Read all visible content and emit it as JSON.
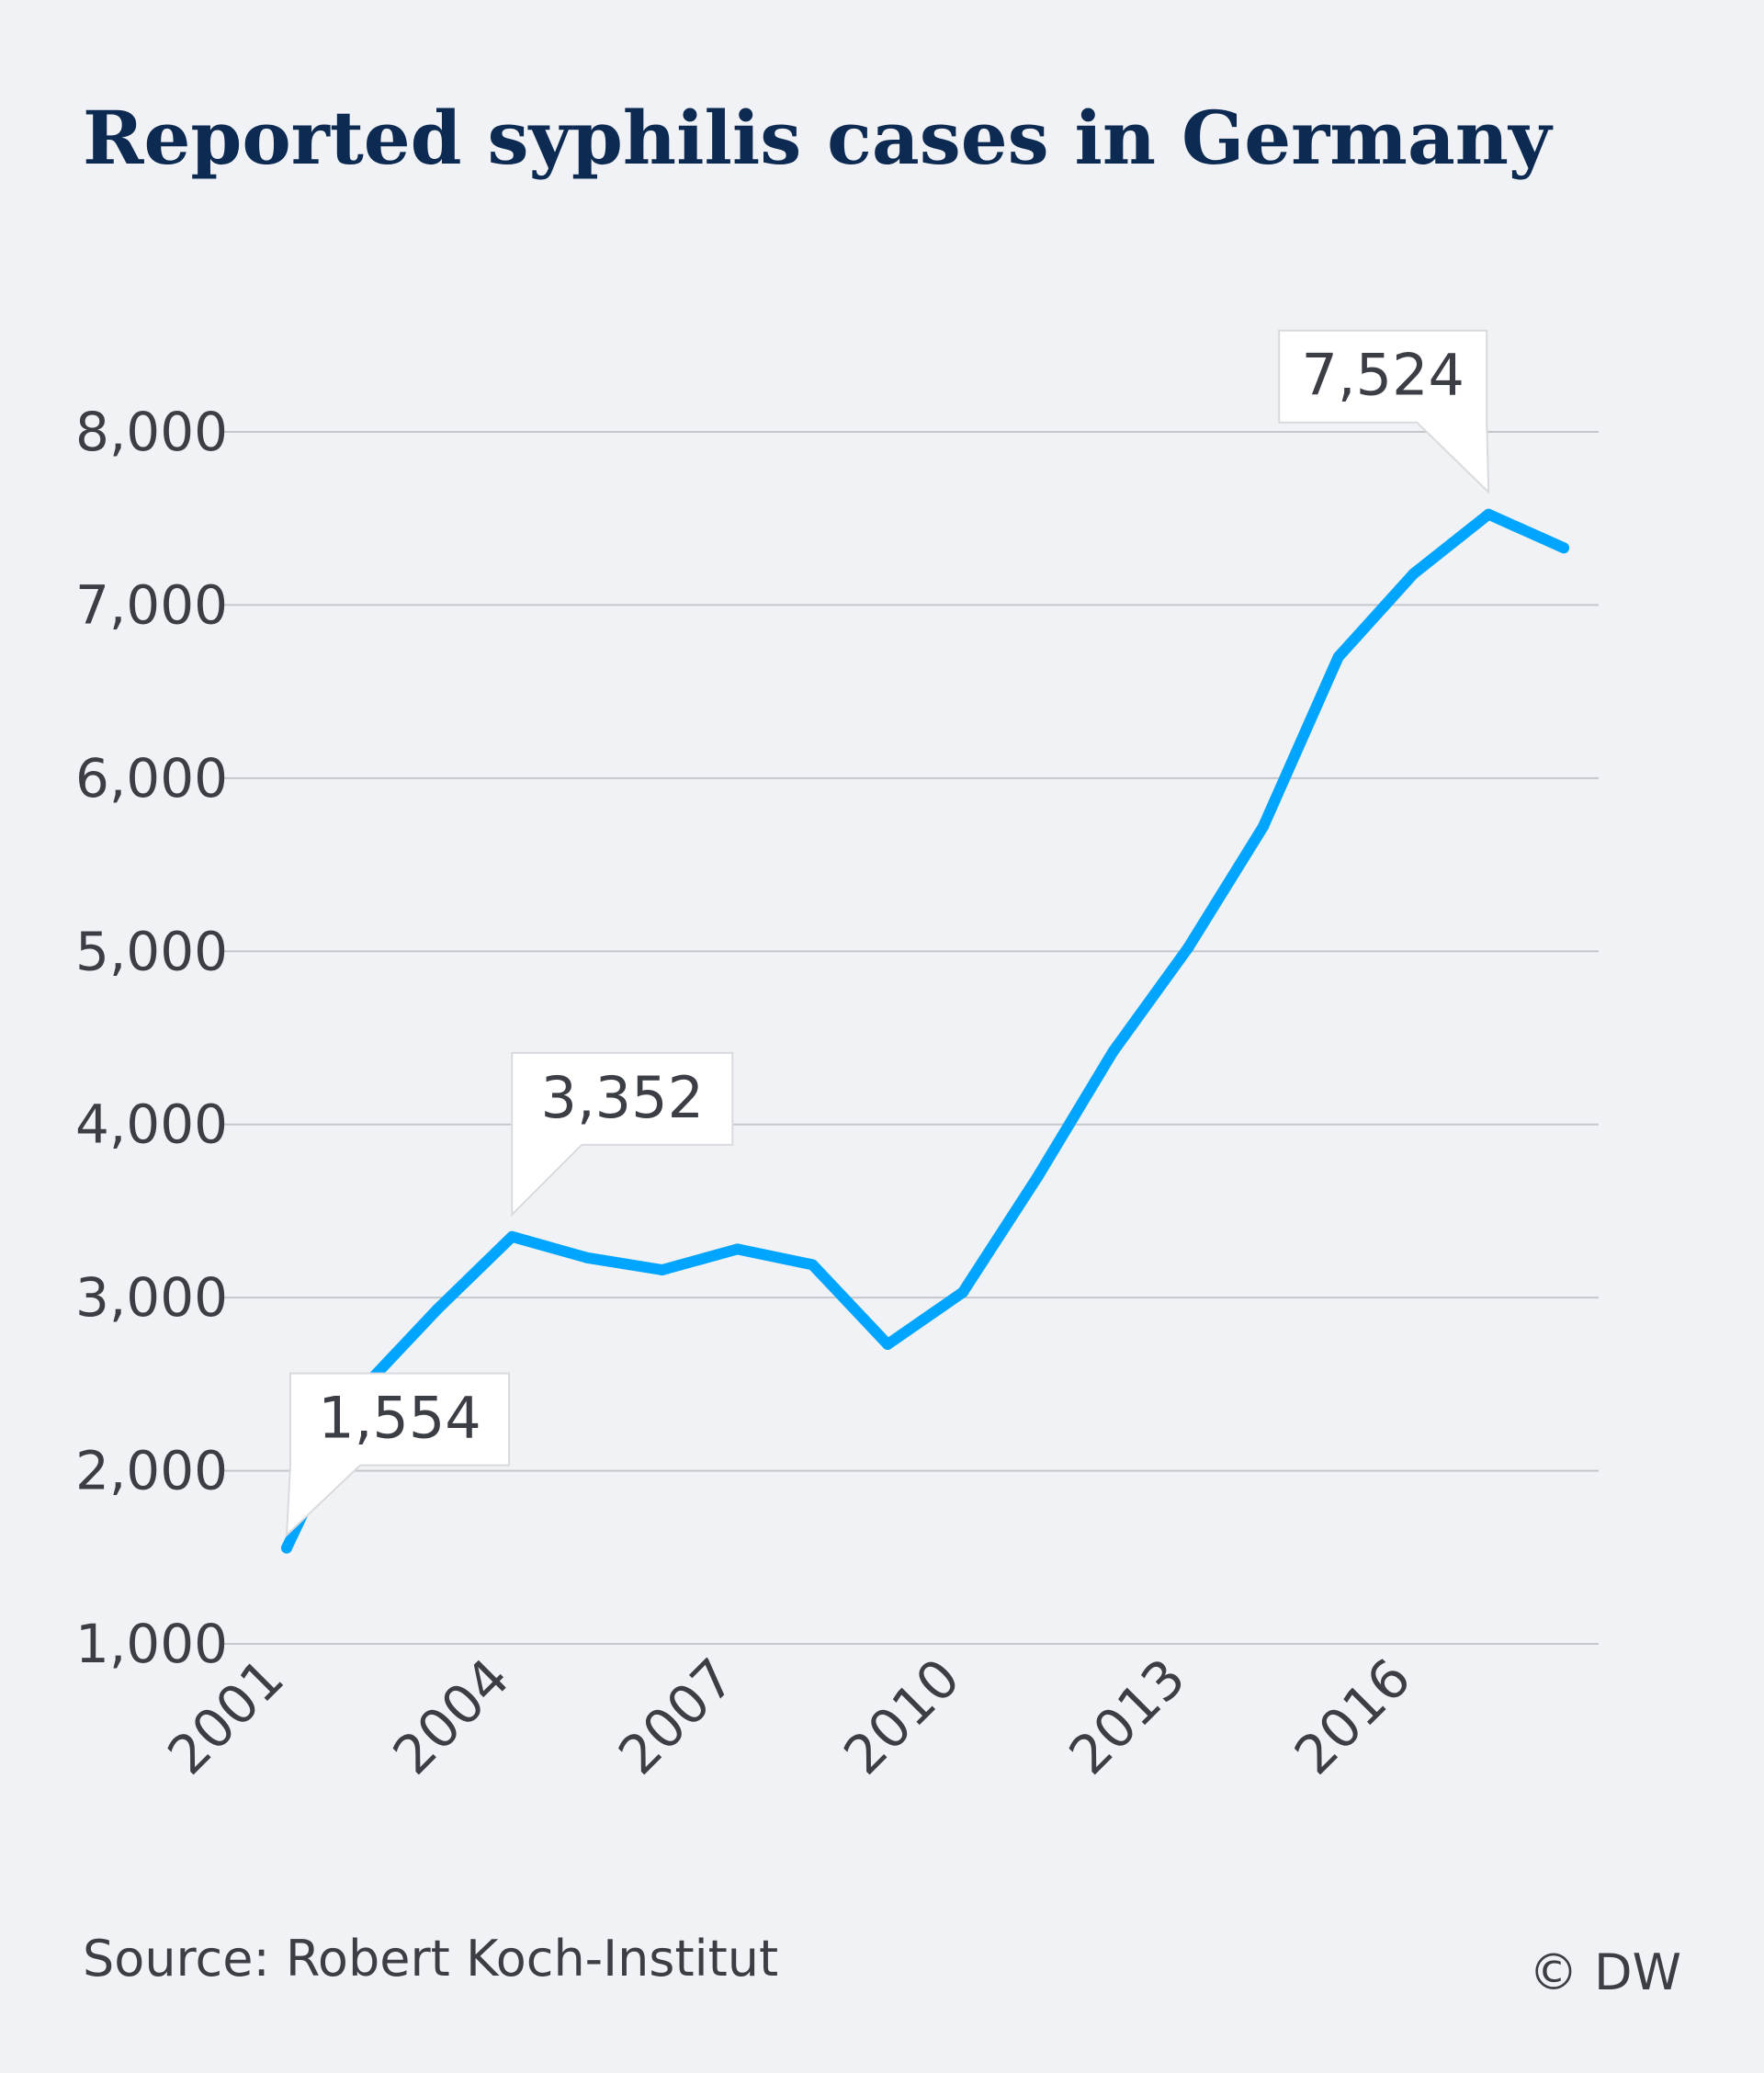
{
  "colors": {
    "background": "#f0f2f5",
    "line": "#00a5ff",
    "title": "#0c2a52",
    "text": "#3b3f45",
    "grid": "#c4c7cc",
    "callout_fill": "#ffffff"
  },
  "footer": {
    "source": "Source: Robert Koch-Institut",
    "credit": "© DW"
  },
  "chart_data": {
    "type": "line",
    "title": "Reported syphilis cases in Germany",
    "xlabel": "",
    "ylabel": "",
    "ylim": [
      1000,
      8000
    ],
    "grid": true,
    "yticks": [
      1000,
      2000,
      3000,
      4000,
      5000,
      6000,
      7000,
      8000
    ],
    "ytick_labels": [
      "1,000",
      "2,000",
      "3,000",
      "4,000",
      "5,000",
      "6,000",
      "7,000",
      "8,000"
    ],
    "xticks": [
      2001,
      2004,
      2007,
      2010,
      2013,
      2016
    ],
    "xtick_labels": [
      "2001",
      "2004",
      "2007",
      "2010",
      "2013",
      "2016"
    ],
    "series": [
      {
        "x": [
          2001,
          2002,
          2003,
          2004,
          2005,
          2006,
          2007,
          2008,
          2009,
          2010,
          2011,
          2012,
          2013,
          2014,
          2015,
          2016,
          2017,
          2018
        ],
        "values": [
          1554,
          2470,
          2930,
          3352,
          3230,
          3160,
          3280,
          3190,
          2730,
          3030,
          3700,
          4420,
          5020,
          5720,
          6700,
          7180,
          7524,
          7330
        ]
      }
    ],
    "annotations": [
      {
        "x": 2001,
        "y": 1554,
        "label": "1,554"
      },
      {
        "x": 2004,
        "y": 3352,
        "label": "3,352"
      },
      {
        "x": 2017,
        "y": 7524,
        "label": "7,524"
      }
    ]
  }
}
